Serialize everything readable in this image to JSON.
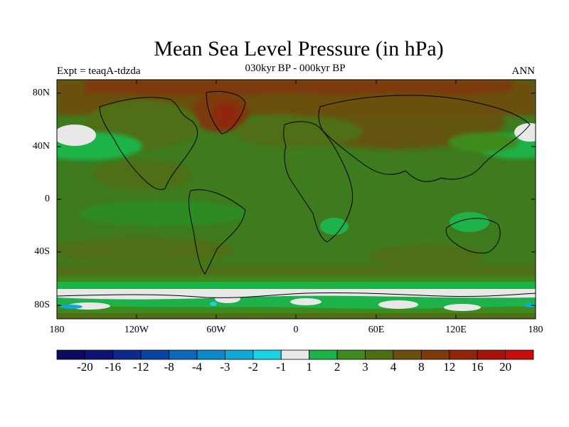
{
  "title": "Mean Sea Level Pressure (in hPa)",
  "subtitle_left": "Expt = teaqA-tdzda",
  "subtitle_center": "030kyr BP - 000kyr BP",
  "subtitle_right": "ANN",
  "lat_ticks": [
    "80N",
    "40N",
    "0",
    "40S",
    "80S"
  ],
  "lon_ticks": [
    "180",
    "120W",
    "60W",
    "0",
    "60E",
    "120E",
    "180"
  ],
  "colorbar": {
    "labels": [
      "-20",
      "-16",
      "-12",
      "-8",
      "-4",
      "-3",
      "-2",
      "-1",
      "1",
      "2",
      "3",
      "4",
      "8",
      "12",
      "16",
      "20"
    ],
    "colors": [
      "#0b0a5c",
      "#0e1373",
      "#0d2a8a",
      "#0a44a3",
      "#0d66b8",
      "#0d88c8",
      "#10a8d6",
      "#1ad2e6",
      "#e8e8e8",
      "#1db34a",
      "#3e8a1e",
      "#4f6e14",
      "#6a4f0e",
      "#7d3a0b",
      "#8f250a",
      "#a6130a",
      "#c70c0c"
    ]
  }
}
